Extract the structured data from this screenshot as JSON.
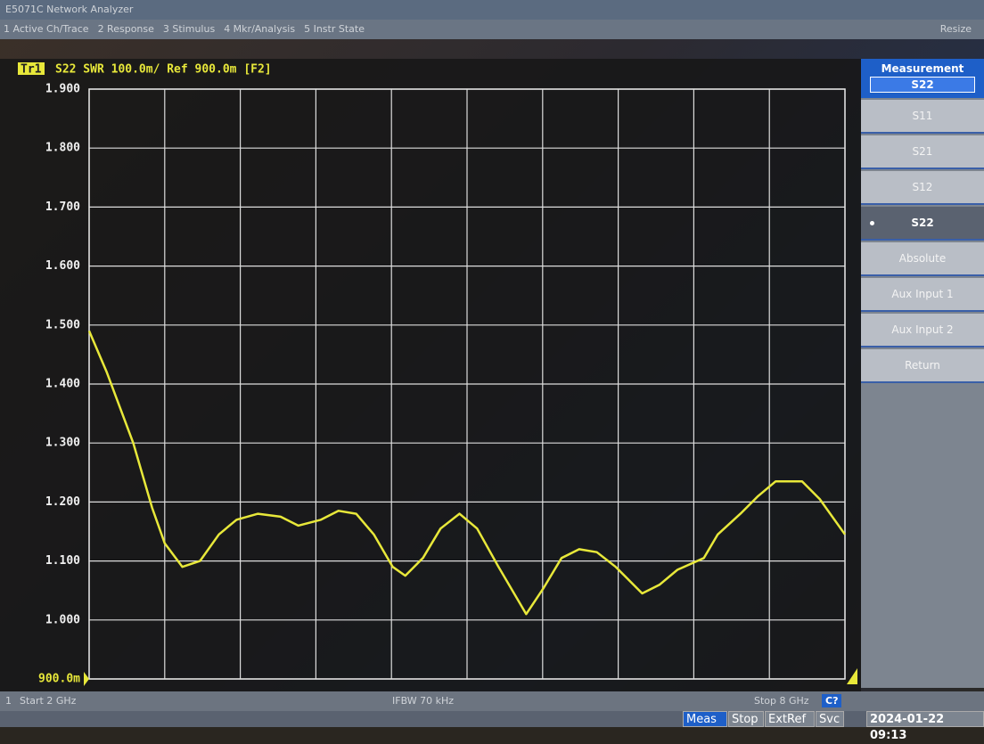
{
  "window_title": "E5071C Network Analyzer",
  "menu": [
    "1 Active Ch/Trace",
    "2 Response",
    "3 Stimulus",
    "4 Mkr/Analysis",
    "5 Instr State"
  ],
  "menu_right": "Resize",
  "trace_header": {
    "trace": "Tr1",
    "text": "S22 SWR 100.0m/ Ref 900.0m [F2]"
  },
  "softkeys": {
    "title": "Measurement",
    "current": "S22",
    "items": [
      "S11",
      "S21",
      "S12",
      "S22",
      "Absolute",
      "Aux Input 1",
      "Aux Input 2",
      "Return"
    ],
    "active": 3
  },
  "status": {
    "channel": "1",
    "start": "Start 2 GHz",
    "ifbw": "IFBW 70 kHz",
    "stop": "Stop 8 GHz",
    "badge": "C?",
    "indicators": [
      "Meas",
      "Stop",
      "ExtRef",
      "Svc"
    ],
    "datetime": "2024-01-22 09:13"
  },
  "chart_data": {
    "type": "line",
    "xlim": [
      2,
      8
    ],
    "ylim": [
      0.9,
      1.9
    ],
    "yticks": [
      {
        "value": 0.9,
        "label": "900.0m"
      },
      {
        "value": 1.0,
        "label": "1.000"
      },
      {
        "value": 1.1,
        "label": "1.100"
      },
      {
        "value": 1.2,
        "label": "1.200"
      },
      {
        "value": 1.3,
        "label": "1.300"
      },
      {
        "value": 1.4,
        "label": "1.400"
      },
      {
        "value": 1.5,
        "label": "1.500"
      },
      {
        "value": 1.6,
        "label": "1.600"
      },
      {
        "value": 1.7,
        "label": "1.700"
      },
      {
        "value": 1.8,
        "label": "1.800"
      },
      {
        "value": 1.9,
        "label": "1.900"
      }
    ],
    "grid": true,
    "series": [
      {
        "name": "S22",
        "color": "#e8e83a",
        "x": [
          2.0,
          2.14,
          2.35,
          2.5,
          2.6,
          2.74,
          2.88,
          3.03,
          3.17,
          3.34,
          3.52,
          3.66,
          3.84,
          3.98,
          4.12,
          4.26,
          4.41,
          4.51,
          4.65,
          4.79,
          4.94,
          5.08,
          5.25,
          5.47,
          5.61,
          5.75,
          5.89,
          6.03,
          6.18,
          6.25,
          6.39,
          6.53,
          6.67,
          6.88,
          6.99,
          7.17,
          7.31,
          7.45,
          7.66,
          7.8,
          8.0
        ],
        "values": [
          1.49,
          1.42,
          1.3,
          1.19,
          1.13,
          1.09,
          1.1,
          1.145,
          1.17,
          1.18,
          1.175,
          1.16,
          1.17,
          1.185,
          1.18,
          1.145,
          1.09,
          1.075,
          1.105,
          1.155,
          1.18,
          1.155,
          1.09,
          1.01,
          1.055,
          1.105,
          1.12,
          1.115,
          1.09,
          1.075,
          1.045,
          1.06,
          1.085,
          1.105,
          1.145,
          1.18,
          1.21,
          1.235,
          1.235,
          1.205,
          1.145
        ]
      }
    ]
  }
}
